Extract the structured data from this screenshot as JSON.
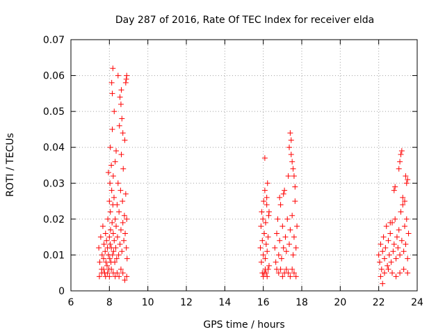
{
  "chart_data": {
    "type": "scatter",
    "title": "Day 287 of 2016, Rate Of TEC Index for receiver elda",
    "xlabel": "GPS time / hours",
    "ylabel": "ROTI / TECUs",
    "xlim": [
      6,
      24
    ],
    "ylim": [
      0,
      0.07
    ],
    "grid": true,
    "x_ticks": [
      6,
      8,
      10,
      12,
      14,
      16,
      18,
      20,
      22,
      24
    ],
    "x_tick_labels": [
      "6",
      "8",
      "10",
      "12",
      "14",
      "16",
      "18",
      "20",
      "22",
      "24"
    ],
    "y_ticks": [
      0,
      0.01,
      0.02,
      0.03,
      0.04,
      0.05,
      0.06,
      0.07
    ],
    "y_tick_labels": [
      "0",
      "0.01",
      "0.02",
      "0.03",
      "0.04",
      "0.05",
      "0.06",
      "0.07"
    ],
    "marker": "plus",
    "marker_color": "#ff0000",
    "series": [
      {
        "name": "ROTI",
        "x": [
          7.45,
          7.5,
          7.55,
          7.6,
          7.62,
          7.66,
          7.7,
          7.72,
          7.75,
          7.78,
          7.8,
          7.82,
          7.85,
          7.88,
          7.9,
          7.92,
          7.95,
          7.97,
          8.0,
          8.0,
          8.02,
          8.03,
          8.04,
          8.05,
          8.06,
          8.08,
          8.1,
          8.1,
          8.12,
          8.14,
          8.15,
          8.16,
          8.18,
          8.2,
          8.2,
          8.22,
          8.24,
          8.25,
          8.28,
          8.3,
          8.3,
          8.33,
          8.35,
          8.38,
          8.4,
          8.42,
          8.45,
          8.48,
          8.5,
          8.52,
          8.55,
          8.58,
          8.6,
          8.62,
          8.65,
          8.68,
          8.7,
          8.72,
          8.75,
          8.78,
          8.8,
          8.82,
          8.85,
          8.88,
          8.9,
          8.92,
          7.48,
          7.6,
          7.7,
          7.8,
          7.9,
          8.0,
          8.1,
          8.2,
          8.3,
          8.4,
          8.5,
          8.6,
          8.7,
          8.8,
          8.9,
          8.15,
          8.18,
          8.12,
          8.25,
          8.55,
          8.6,
          8.62,
          8.65,
          8.45,
          8.7,
          8.85,
          8.88,
          8.9,
          8.35,
          8.05,
          7.95,
          15.85,
          15.88,
          15.9,
          15.92,
          15.95,
          15.98,
          16.0,
          16.02,
          16.05,
          16.08,
          16.1,
          16.12,
          16.15,
          16.18,
          16.2,
          16.22,
          16.25,
          16.28,
          16.3,
          16.05,
          16.1,
          16.15,
          16.2,
          16.25,
          16.0,
          15.95,
          16.08,
          16.18,
          16.3,
          16.6,
          16.65,
          16.7,
          16.75,
          16.8,
          16.85,
          16.9,
          16.95,
          17.0,
          17.05,
          17.1,
          17.15,
          17.2,
          17.25,
          17.3,
          17.35,
          17.4,
          17.45,
          17.5,
          17.55,
          17.6,
          17.65,
          17.7,
          17.75,
          16.7,
          16.8,
          16.9,
          17.0,
          17.1,
          17.2,
          17.3,
          17.4,
          17.5,
          17.6,
          17.7,
          17.35,
          17.4,
          17.45,
          17.5,
          17.55,
          17.6,
          17.05,
          16.85,
          17.65,
          22.0,
          22.05,
          22.1,
          22.15,
          22.2,
          22.25,
          22.3,
          22.35,
          22.4,
          22.45,
          22.5,
          22.55,
          22.6,
          22.65,
          22.7,
          22.75,
          22.8,
          22.85,
          22.9,
          22.95,
          23.0,
          23.05,
          23.1,
          23.15,
          23.2,
          23.25,
          23.3,
          23.35,
          23.4,
          23.45,
          23.5,
          23.55,
          22.1,
          22.3,
          22.5,
          22.7,
          22.9,
          23.1,
          23.3,
          23.5,
          23.05,
          23.1,
          23.15,
          23.2,
          23.25,
          22.8,
          22.85,
          22.6,
          23.4,
          23.45,
          23.5,
          22.2,
          23.35
        ],
        "y": [
          0.012,
          0.008,
          0.015,
          0.006,
          0.01,
          0.018,
          0.009,
          0.013,
          0.005,
          0.011,
          0.016,
          0.008,
          0.014,
          0.007,
          0.012,
          0.02,
          0.01,
          0.006,
          0.015,
          0.025,
          0.009,
          0.03,
          0.013,
          0.022,
          0.017,
          0.008,
          0.035,
          0.012,
          0.028,
          0.019,
          0.045,
          0.01,
          0.024,
          0.016,
          0.032,
          0.011,
          0.026,
          0.014,
          0.008,
          0.02,
          0.036,
          0.012,
          0.018,
          0.009,
          0.024,
          0.015,
          0.03,
          0.01,
          0.022,
          0.046,
          0.013,
          0.028,
          0.017,
          0.038,
          0.011,
          0.025,
          0.019,
          0.034,
          0.014,
          0.021,
          0.042,
          0.016,
          0.027,
          0.012,
          0.02,
          0.009,
          0.004,
          0.005,
          0.006,
          0.004,
          0.005,
          0.004,
          0.006,
          0.005,
          0.004,
          0.005,
          0.004,
          0.006,
          0.005,
          0.003,
          0.004,
          0.055,
          0.062,
          0.058,
          0.05,
          0.054,
          0.052,
          0.056,
          0.048,
          0.06,
          0.044,
          0.058,
          0.059,
          0.06,
          0.039,
          0.04,
          0.033,
          0.012,
          0.018,
          0.008,
          0.022,
          0.014,
          0.02,
          0.01,
          0.025,
          0.016,
          0.028,
          0.009,
          0.019,
          0.013,
          0.024,
          0.011,
          0.03,
          0.015,
          0.021,
          0.007,
          0.005,
          0.006,
          0.005,
          0.004,
          0.006,
          0.004,
          0.005,
          0.037,
          0.026,
          0.022,
          0.012,
          0.008,
          0.016,
          0.02,
          0.01,
          0.014,
          0.024,
          0.009,
          0.018,
          0.012,
          0.028,
          0.015,
          0.011,
          0.02,
          0.032,
          0.013,
          0.017,
          0.038,
          0.021,
          0.01,
          0.015,
          0.025,
          0.012,
          0.018,
          0.006,
          0.005,
          0.006,
          0.004,
          0.005,
          0.006,
          0.005,
          0.004,
          0.006,
          0.005,
          0.004,
          0.04,
          0.044,
          0.042,
          0.036,
          0.034,
          0.032,
          0.027,
          0.026,
          0.029,
          0.01,
          0.008,
          0.013,
          0.006,
          0.011,
          0.015,
          0.009,
          0.012,
          0.018,
          0.007,
          0.014,
          0.01,
          0.016,
          0.008,
          0.019,
          0.011,
          0.013,
          0.02,
          0.009,
          0.015,
          0.012,
          0.017,
          0.01,
          0.022,
          0.014,
          0.024,
          0.011,
          0.018,
          0.013,
          0.02,
          0.009,
          0.016,
          0.004,
          0.005,
          0.006,
          0.005,
          0.004,
          0.005,
          0.006,
          0.005,
          0.034,
          0.036,
          0.038,
          0.039,
          0.026,
          0.028,
          0.029,
          0.019,
          0.032,
          0.03,
          0.031,
          0.002,
          0.025
        ]
      }
    ]
  }
}
